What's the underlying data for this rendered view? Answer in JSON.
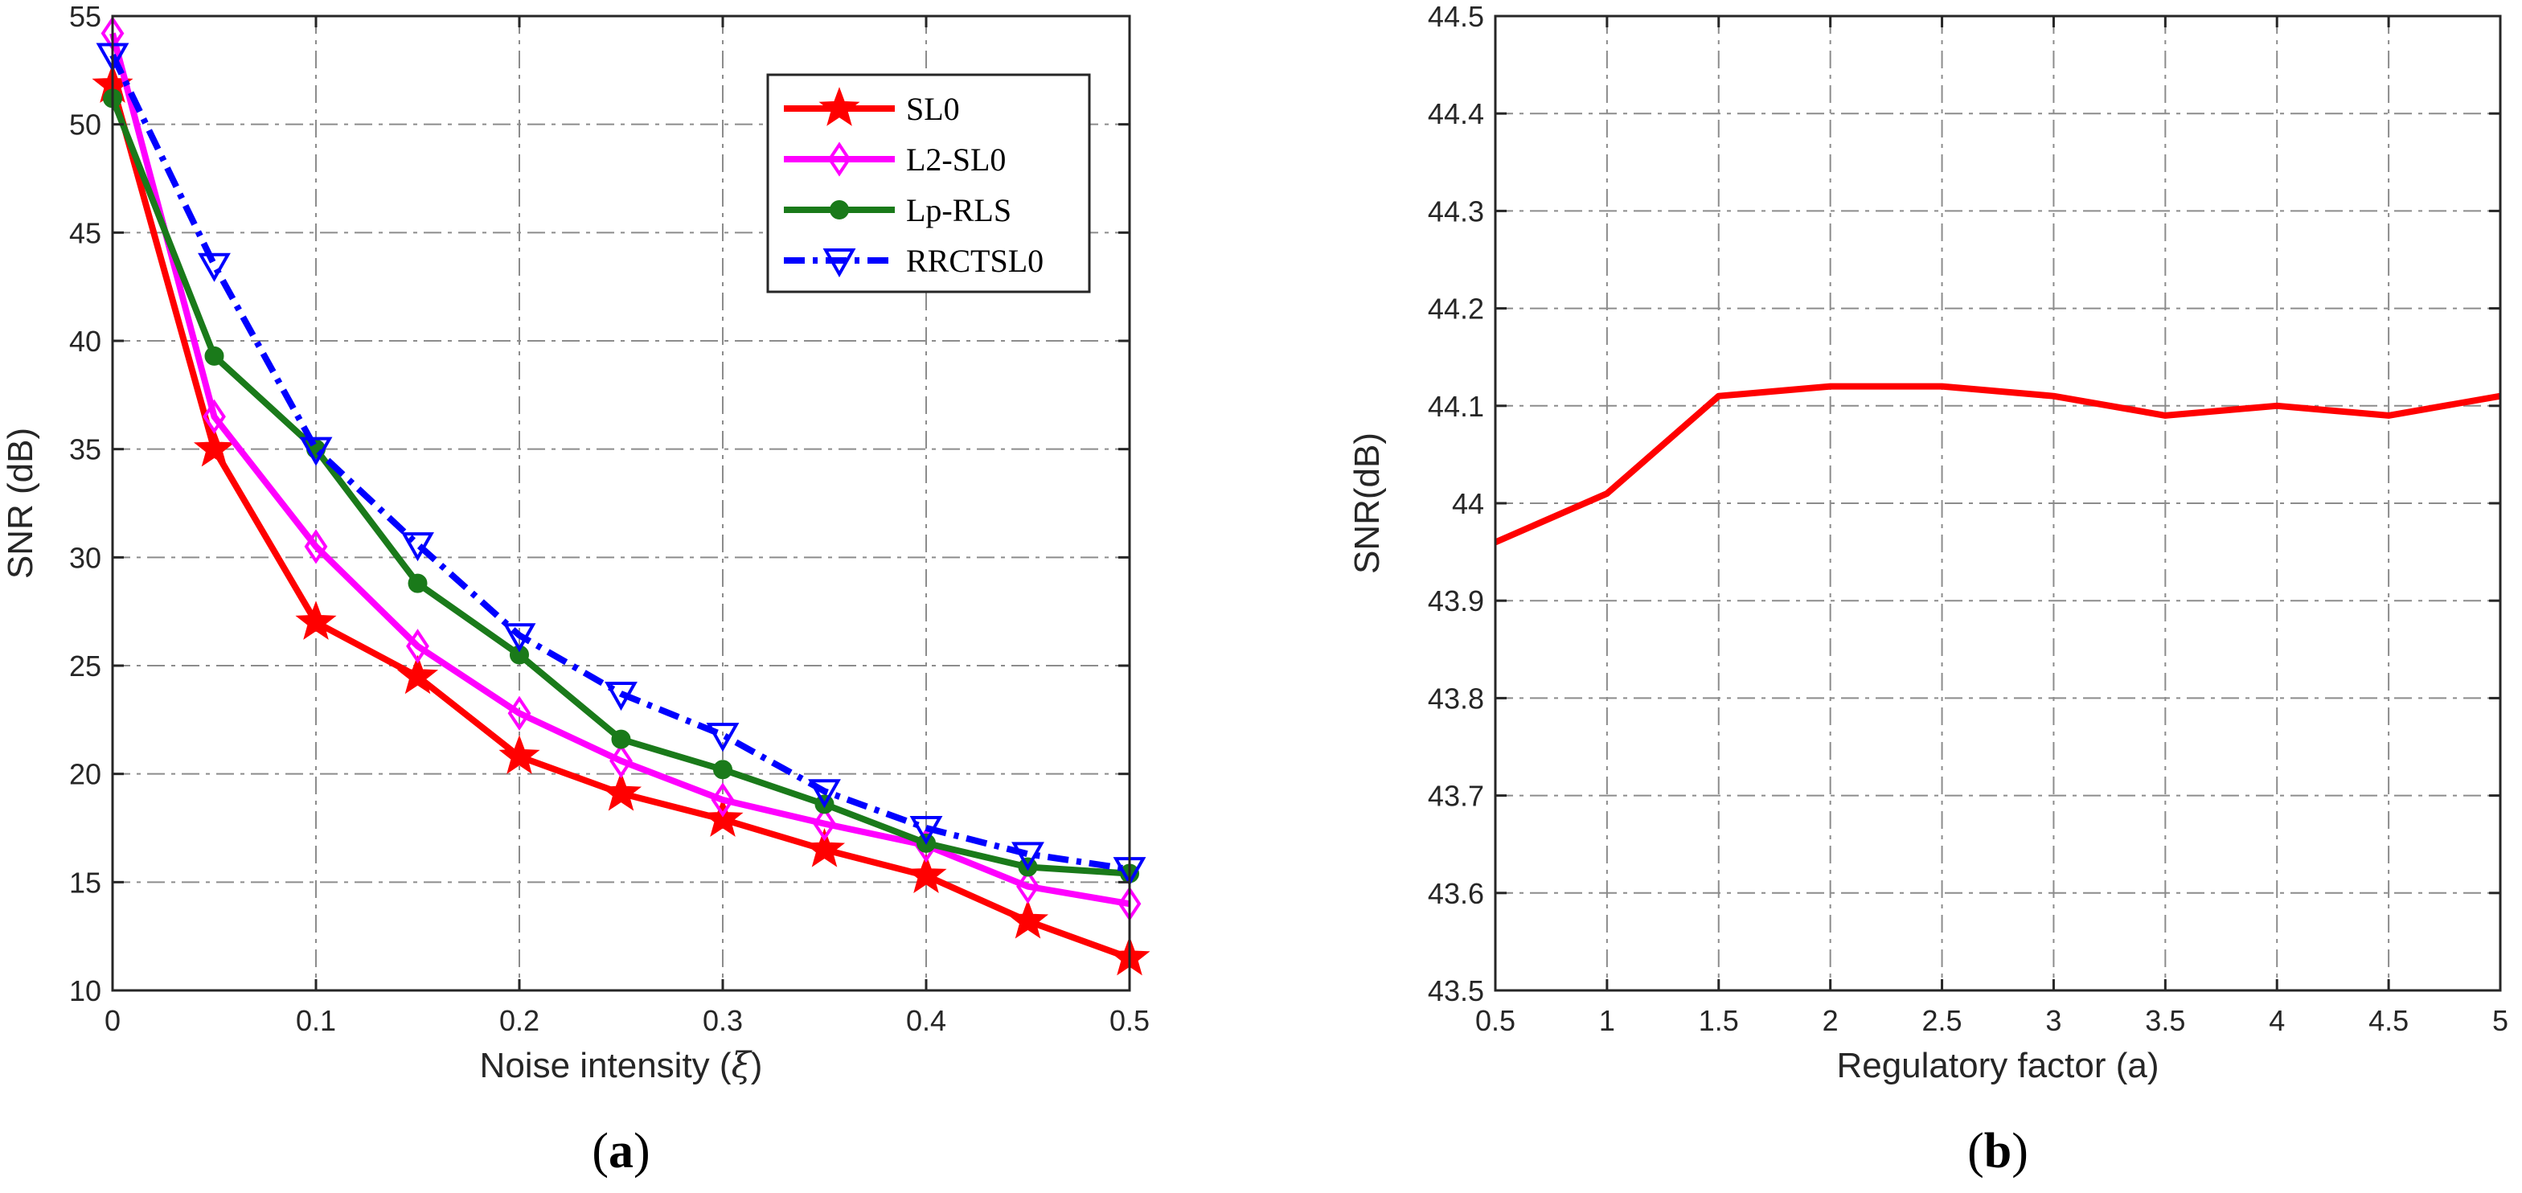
{
  "chart_data": [
    {
      "type": "line",
      "panel_label": "a",
      "xlabel": "Noise intensity (",
      "xlabel_symbol": "ξ",
      "xlabel_close": ")",
      "ylabel": "SNR (dB)",
      "xlim": [
        0,
        0.5
      ],
      "ylim": [
        10,
        55
      ],
      "xticks": [
        0,
        0.1,
        0.2,
        0.3,
        0.4,
        0.5
      ],
      "xticklabels": [
        "0",
        "0.1",
        "0.2",
        "0.3",
        "0.4",
        "0.5"
      ],
      "yticks": [
        10,
        15,
        20,
        25,
        30,
        35,
        40,
        45,
        50,
        55
      ],
      "yticklabels": [
        "10",
        "15",
        "20",
        "25",
        "30",
        "35",
        "40",
        "45",
        "50",
        "55"
      ],
      "grid": true,
      "legend_position": "top-right",
      "x": [
        0,
        0.05,
        0.1,
        0.15,
        0.2,
        0.25,
        0.3,
        0.35,
        0.4,
        0.45,
        0.5
      ],
      "series": [
        {
          "name": "SL0",
          "color": "#ff0000",
          "marker": "star",
          "dash": "solid",
          "values": [
            51.8,
            35.0,
            27.0,
            24.5,
            20.8,
            19.1,
            17.9,
            16.5,
            15.3,
            13.2,
            11.5
          ]
        },
        {
          "name": "L2-SL0",
          "color": "#ff00ff",
          "marker": "diamond",
          "dash": "solid",
          "values": [
            54.2,
            36.5,
            30.5,
            25.9,
            22.8,
            20.6,
            18.8,
            17.7,
            16.7,
            14.8,
            14.0
          ]
        },
        {
          "name": "Lp-RLS",
          "color": "#1a7a1a",
          "marker": "circle",
          "dash": "solid",
          "values": [
            51.2,
            39.3,
            35.0,
            28.8,
            25.5,
            21.6,
            20.2,
            18.6,
            16.8,
            15.7,
            15.4
          ]
        },
        {
          "name": "RRCTSL0",
          "color": "#0000ff",
          "marker": "triangle-down",
          "dash": "dashdot",
          "values": [
            53.2,
            43.5,
            35.0,
            30.6,
            26.4,
            23.7,
            21.8,
            19.2,
            17.5,
            16.3,
            15.6
          ]
        }
      ]
    },
    {
      "type": "line",
      "panel_label": "b",
      "xlabel": "Regulatory factor (a)",
      "ylabel": "SNR(dB)",
      "xlim": [
        0.5,
        5
      ],
      "ylim": [
        43.5,
        44.5
      ],
      "xticks": [
        0.5,
        1,
        1.5,
        2,
        2.5,
        3,
        3.5,
        4,
        4.5,
        5
      ],
      "xticklabels": [
        "0.5",
        "1",
        "1.5",
        "2",
        "2.5",
        "3",
        "3.5",
        "4",
        "4.5",
        "5"
      ],
      "yticks": [
        43.5,
        43.6,
        43.7,
        43.8,
        43.9,
        44.0,
        44.1,
        44.2,
        44.3,
        44.4,
        44.5
      ],
      "yticklabels": [
        "43.5",
        "43.6",
        "43.7",
        "43.8",
        "43.9",
        "44",
        "44.1",
        "44.2",
        "44.3",
        "44.4",
        "44.5"
      ],
      "grid": true,
      "x": [
        0.5,
        1,
        1.5,
        2,
        2.5,
        3,
        3.5,
        4,
        4.5,
        5
      ],
      "series": [
        {
          "name": "SNR",
          "color": "#ff0000",
          "marker": "none",
          "dash": "solid",
          "values": [
            43.96,
            44.01,
            44.11,
            44.12,
            44.12,
            44.11,
            44.09,
            44.1,
            44.09,
            44.11
          ]
        }
      ]
    }
  ]
}
